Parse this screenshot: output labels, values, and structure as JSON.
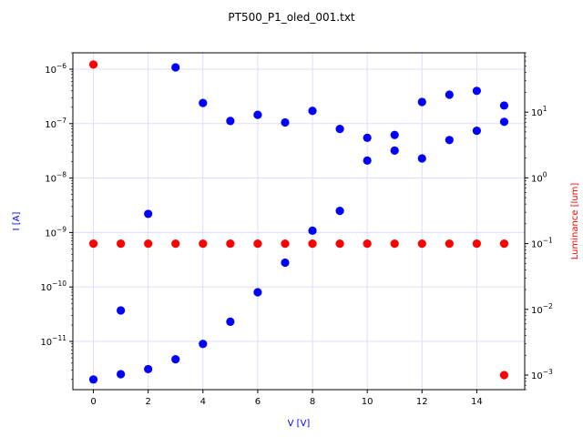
{
  "chart_data": {
    "type": "scatter",
    "title": "PT500_P1_oled_001.txt",
    "xlabel": "V [V]",
    "ylabel_left": "I [A]",
    "ylabel_right": "Luminance [lum]",
    "xlim": [
      -0.75,
      15.75
    ],
    "ylim_left": [
      1.3e-12,
      2e-06
    ],
    "ylim_right": [
      0.0006,
      80
    ],
    "yscale_left": "log",
    "yscale_right": "log",
    "grid": true,
    "x_ticks": [
      0,
      2,
      4,
      6,
      8,
      10,
      12,
      14
    ],
    "y_left_ticks": [
      {
        "value": 1e-06,
        "label": "10",
        "exp": "−6"
      },
      {
        "value": 1e-07,
        "label": "10",
        "exp": "−7"
      },
      {
        "value": 1e-08,
        "label": "10",
        "exp": "−8"
      },
      {
        "value": 1e-09,
        "label": "10",
        "exp": "−9"
      },
      {
        "value": 1e-10,
        "label": "10",
        "exp": "−10"
      },
      {
        "value": 1e-11,
        "label": "10",
        "exp": "−11"
      }
    ],
    "y_right_ticks": [
      {
        "value": 10,
        "label": "10",
        "exp": "1"
      },
      {
        "value": 1,
        "label": "10",
        "exp": "0"
      },
      {
        "value": 0.1,
        "label": "10",
        "exp": "−1"
      },
      {
        "value": 0.01,
        "label": "10",
        "exp": "−2"
      },
      {
        "value": 0.001,
        "label": "10",
        "exp": "−3"
      }
    ],
    "series": [
      {
        "axis": "left",
        "color": "#0000ff",
        "x": [
          0,
          1,
          2,
          3,
          4,
          5,
          6,
          7,
          8,
          9,
          10,
          11,
          12,
          13,
          14,
          15
        ],
        "y": [
          2e-12,
          2.5e-12,
          3.1e-12,
          4.7e-12,
          9e-12,
          2.3e-11,
          8e-11,
          2.8e-10,
          1.08e-09,
          2.5e-09,
          2.1e-08,
          3.2e-08,
          2.3e-08,
          5e-08,
          7.4e-08,
          1.08e-07
        ]
      },
      {
        "axis": "left",
        "color": "#0000ff",
        "x": [
          1,
          2,
          3,
          4,
          5,
          6,
          7,
          8,
          9,
          10,
          11,
          12,
          13,
          14,
          15
        ],
        "y": [
          3.7e-11,
          2.2e-09,
          1.08e-06,
          2.4e-07,
          1.12e-07,
          1.45e-07,
          1.05e-07,
          1.72e-07,
          8e-08,
          5.5e-08,
          6.2e-08,
          2.5e-07,
          3.4e-07,
          4e-07,
          2.15e-07
        ]
      },
      {
        "axis": "right",
        "color": "#ff0000",
        "x": [
          0,
          0,
          1,
          2,
          3,
          4,
          5,
          6,
          7,
          8,
          9,
          10,
          11,
          12,
          13,
          14,
          15,
          15
        ],
        "y": [
          53,
          0.1,
          0.1,
          0.1,
          0.1,
          0.1,
          0.1,
          0.1,
          0.1,
          0.1,
          0.1,
          0.1,
          0.1,
          0.1,
          0.1,
          0.1,
          0.1,
          0.001
        ]
      }
    ],
    "colors": {
      "current": "#0000ff",
      "luminance": "#ff0000",
      "grid": "#ddddff"
    }
  }
}
